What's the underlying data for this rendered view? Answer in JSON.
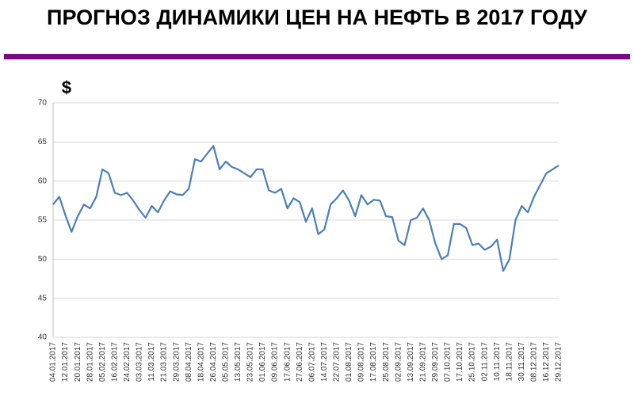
{
  "chart_data": {
    "type": "line",
    "title": "ПРОГНОЗ ДИНАМИКИ ЦЕН НА НЕФТЬ В 2017 ГОДУ",
    "y_label": "$",
    "color": "#4a7ebb",
    "grid": true,
    "ylim": [
      40,
      70
    ],
    "yticks": [
      40,
      45,
      50,
      55,
      60,
      65,
      70
    ],
    "categories": [
      "04.01.2017",
      null,
      "12.01.2017",
      null,
      "20.01.2017",
      null,
      "28.01.2017",
      null,
      "05.02.2017",
      null,
      "16.02.2017",
      null,
      "24.02.2017",
      null,
      "03.03.2017",
      null,
      "11.03.2017",
      null,
      "21.03.2017",
      null,
      "29.03.2017",
      null,
      "08.04.2017",
      null,
      "18.04.2017",
      null,
      "26.04.2017",
      null,
      "05.05.2017",
      null,
      "13.05.2017",
      null,
      "23.05.2017",
      null,
      "01.06.2017",
      null,
      "09.06.2017",
      null,
      "17.06.2017",
      null,
      "27.06.2017",
      null,
      "06.07.2017",
      null,
      "14.07.2017",
      null,
      "22.07.2017",
      null,
      "01.08.2017",
      null,
      "09.08.2017",
      null,
      "17.08.2017",
      null,
      "25.08.2017",
      null,
      "02.09.2017",
      null,
      "13.09.2017",
      null,
      "21.09.2017",
      null,
      "29.09.2017",
      null,
      "07.10.2017",
      null,
      "17.10.2017",
      null,
      "25.10.2017",
      null,
      "02.11.2017",
      null,
      "10.11.2017",
      null,
      "18.11.2017",
      null,
      "30.11.2017",
      null,
      "08.12.2017",
      null,
      "16.12.2017",
      null,
      "29.12.2017"
    ],
    "values": [
      57.0,
      58.0,
      55.6,
      53.5,
      55.5,
      57.0,
      56.5,
      58.0,
      61.5,
      61.0,
      58.5,
      58.2,
      58.5,
      57.5,
      56.3,
      55.3,
      56.8,
      56.0,
      57.5,
      58.7,
      58.3,
      58.2,
      59.0,
      62.8,
      62.5,
      63.5,
      64.5,
      61.5,
      62.5,
      61.8,
      61.5,
      61.0,
      60.5,
      61.5,
      61.5,
      58.8,
      58.5,
      59.0,
      56.5,
      57.8,
      57.3,
      54.8,
      56.5,
      53.2,
      53.8,
      57.0,
      57.8,
      58.8,
      57.5,
      55.5,
      58.2,
      57.0,
      57.6,
      57.5,
      55.5,
      55.4,
      52.4,
      51.8,
      55.0,
      55.3,
      56.5,
      55.0,
      52.0,
      50.0,
      50.5,
      54.5,
      54.5,
      54.0,
      51.8,
      52.0,
      51.2,
      51.6,
      52.5,
      48.5,
      50.0,
      55.0,
      56.8,
      56.0,
      58.0,
      59.5,
      61.0,
      61.5,
      62.0
    ]
  }
}
